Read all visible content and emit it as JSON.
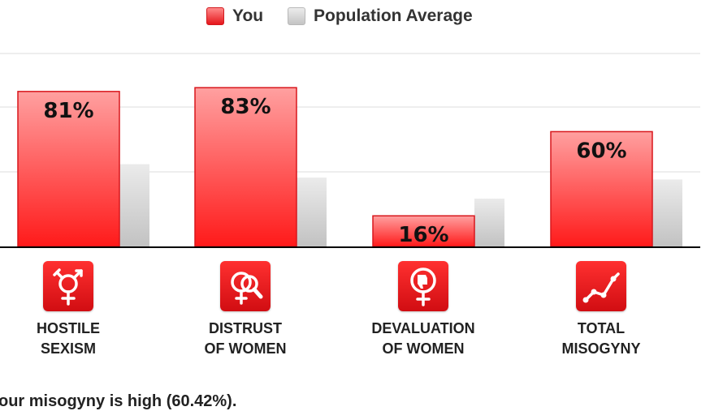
{
  "legend": {
    "you": "You",
    "average": "Population Average"
  },
  "colors": {
    "you_top": "#ffa0a0",
    "you_bottom": "#ff1a1a",
    "you_border": "#d8161c",
    "avg_top": "#ebebeb",
    "avg_bottom": "#c2c2c2",
    "axis": "#000000",
    "grid": "#dddddd"
  },
  "chart_data": {
    "type": "bar",
    "categories": [
      "HOSTILE SEXISM",
      "DISTRUST OF WOMEN",
      "DEVALUATION OF WOMEN",
      "TOTAL MISOGYNY"
    ],
    "category_lines": [
      [
        "HOSTILE",
        "SEXISM"
      ],
      [
        "DISTRUST",
        "OF WOMEN"
      ],
      [
        "DEVALUATION",
        "OF WOMEN"
      ],
      [
        "TOTAL",
        "MISOGYNY"
      ]
    ],
    "icons": [
      "gender-symbol-icon",
      "magnifier-female-icon",
      "thumbs-down-female-icon",
      "line-graph-icon"
    ],
    "series": [
      {
        "name": "You",
        "values": [
          81,
          83,
          16,
          60
        ],
        "labels": [
          "81%",
          "83%",
          "16%",
          "60%"
        ]
      },
      {
        "name": "Population Average",
        "values": [
          43,
          36,
          25,
          35
        ]
      }
    ],
    "ylim": [
      0,
      100
    ],
    "grid": true,
    "legend_position": "top-center"
  },
  "summary": "our misogyny is high (60.42%)."
}
